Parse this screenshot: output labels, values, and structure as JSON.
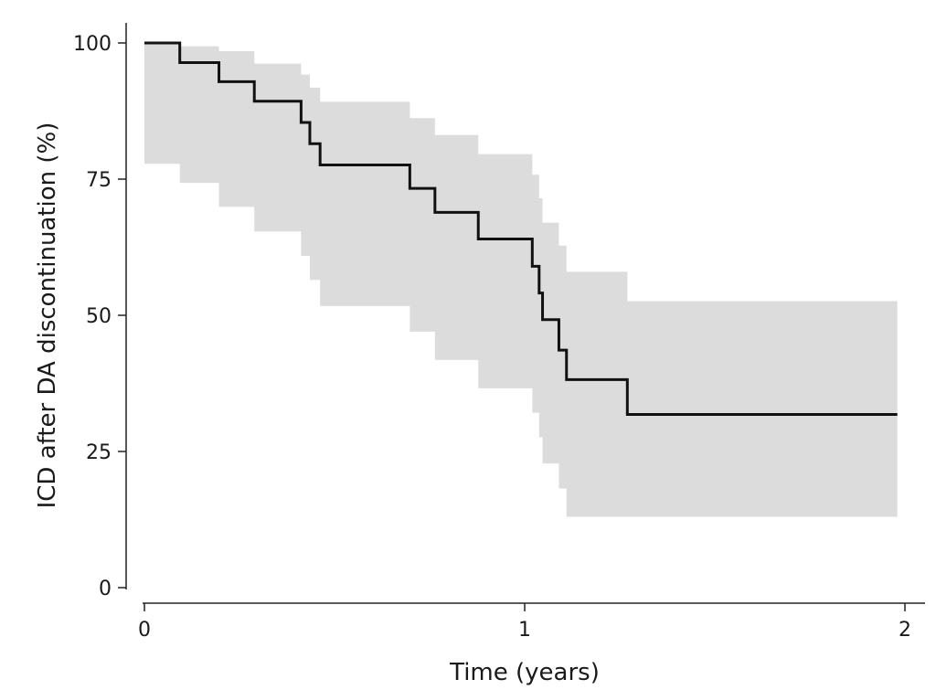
{
  "chart_data": {
    "type": "line",
    "title": "",
    "xlabel": "Time (years)",
    "ylabel": "ICD after DA discontinuation (%)",
    "xlim": [
      0,
      2
    ],
    "ylim": [
      0,
      100
    ],
    "xticks": [
      0,
      1,
      2
    ],
    "xtick_labels": [
      "0",
      "1",
      "2"
    ],
    "yticks": [
      0,
      25,
      50,
      75,
      100
    ],
    "ytick_labels": [
      "0",
      "25",
      "50",
      "75",
      "100"
    ],
    "grid": false,
    "legend": "none",
    "colors": {
      "line": "#111111",
      "band": "#dcdcdc"
    },
    "series": [
      {
        "style": "step",
        "x": [
          0,
          0.093,
          0.196,
          0.289,
          0.412,
          0.435,
          0.462,
          0.698,
          0.764,
          0.878,
          1.02,
          1.038,
          1.047,
          1.09,
          1.11,
          1.27,
          1.98
        ],
        "y": [
          100,
          96.4,
          92.9,
          89.3,
          85.4,
          81.5,
          77.6,
          73.3,
          68.9,
          64.0,
          59.0,
          54.1,
          49.2,
          43.6,
          38.2,
          31.8,
          31.8
        ],
        "ci_lower": [
          100,
          77.8,
          74.3,
          69.9,
          65.4,
          60.9,
          56.5,
          51.7,
          47.0,
          41.8,
          36.6,
          32.1,
          27.6,
          22.8,
          18.2,
          13.0,
          13.0
        ],
        "ci_upper": [
          100,
          99.4,
          98.5,
          96.2,
          94.2,
          91.8,
          89.2,
          86.2,
          83.1,
          79.6,
          75.8,
          71.5,
          67.0,
          62.8,
          58.0,
          52.6,
          52.6
        ]
      }
    ]
  }
}
